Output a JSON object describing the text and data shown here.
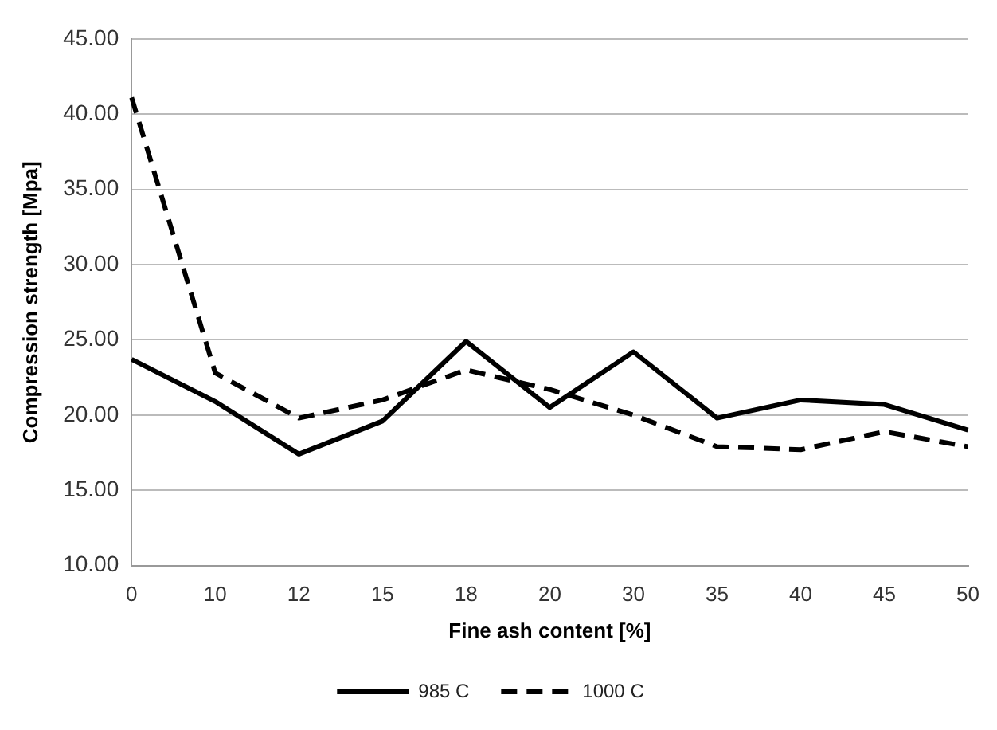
{
  "chart_data": {
    "type": "line",
    "xlabel": "Fine ash content [%]",
    "ylabel": "Compression strength [Mpa]",
    "categories": [
      "0",
      "10",
      "12",
      "15",
      "18",
      "20",
      "30",
      "35",
      "40",
      "45",
      "50"
    ],
    "series": [
      {
        "name": "985 C",
        "color": "#000000",
        "line_style": "solid",
        "values": [
          23.7,
          20.9,
          17.4,
          19.6,
          24.9,
          20.5,
          24.2,
          19.8,
          21.0,
          20.7,
          19.0
        ]
      },
      {
        "name": "1000 C",
        "color": "#000000",
        "line_style": "dashed",
        "values": [
          41.1,
          22.8,
          19.8,
          21.0,
          23.0,
          21.7,
          20.0,
          17.9,
          17.7,
          18.9,
          17.9
        ]
      }
    ],
    "ylim": [
      10,
      45
    ],
    "yticks": [
      {
        "value": 10,
        "label": "10.00"
      },
      {
        "value": 15,
        "label": "15.00"
      },
      {
        "value": 20,
        "label": "20.00"
      },
      {
        "value": 25,
        "label": "25.00"
      },
      {
        "value": 30,
        "label": "30.00"
      },
      {
        "value": 35,
        "label": "35.00"
      },
      {
        "value": 40,
        "label": "40.00"
      },
      {
        "value": 45,
        "label": "45.00"
      }
    ],
    "grid": "y",
    "legend": "bottom",
    "marker": "none"
  }
}
